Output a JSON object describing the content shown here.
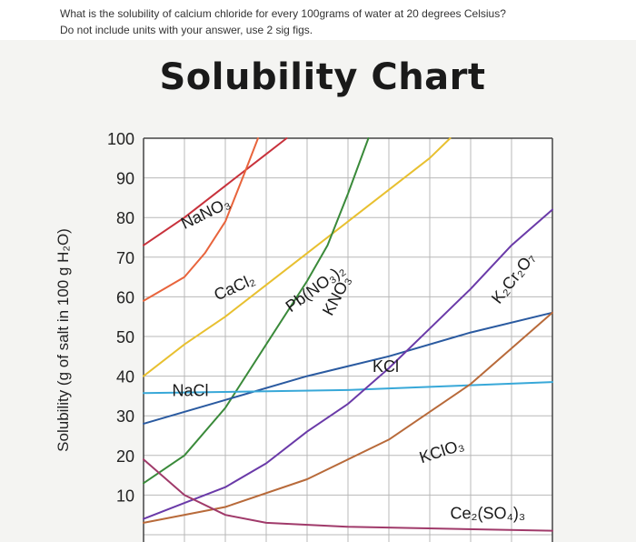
{
  "question": {
    "line1": "What is the solubility of calcium chloride for every 100grams of water at 20 degrees Celsius?",
    "line2": "Do not include units with your answer, use 2 sig figs."
  },
  "chart_data": {
    "type": "line",
    "title": "Solubility Chart",
    "xlabel": "",
    "ylabel": "Solubility (g of salt in 100 g H₂O)",
    "ylim": [
      0,
      100
    ],
    "xlim": [
      0,
      100
    ],
    "grid": true,
    "legend": "none",
    "yticks": [
      "100",
      "90",
      "80",
      "70",
      "60",
      "50",
      "40",
      "30",
      "20",
      "10"
    ],
    "series": [
      {
        "name": "NaNO₃",
        "color": "#c8323c",
        "label_at": [
          10,
          77
        ],
        "points": [
          [
            0,
            73
          ],
          [
            10,
            80
          ],
          [
            20,
            88
          ],
          [
            30,
            96
          ],
          [
            35,
            100
          ]
        ]
      },
      {
        "name": "CaCl₂",
        "color": "#e8643c",
        "label_at": [
          18,
          59
        ],
        "points": [
          [
            0,
            59
          ],
          [
            5,
            62
          ],
          [
            10,
            65
          ],
          [
            15,
            71
          ],
          [
            20,
            79
          ],
          [
            25,
            92
          ],
          [
            28,
            100
          ]
        ]
      },
      {
        "name": "Pb(NO₃)₂",
        "color": "#e8c030",
        "label_at": [
          36,
          56
        ],
        "points": [
          [
            0,
            40
          ],
          [
            10,
            48
          ],
          [
            20,
            55
          ],
          [
            30,
            63
          ],
          [
            40,
            71
          ],
          [
            50,
            79
          ],
          [
            60,
            87
          ],
          [
            70,
            95
          ],
          [
            75,
            100
          ]
        ]
      },
      {
        "name": "KNO₃",
        "color": "#3a8a3a",
        "label_at": [
          46,
          55
        ],
        "points": [
          [
            0,
            13
          ],
          [
            10,
            20
          ],
          [
            20,
            32
          ],
          [
            30,
            48
          ],
          [
            40,
            64
          ],
          [
            45,
            73
          ],
          [
            50,
            86
          ],
          [
            55,
            100
          ]
        ]
      },
      {
        "name": "KCl",
        "color": "#2a5aa0",
        "label_at": [
          56,
          41
        ],
        "points": [
          [
            0,
            28
          ],
          [
            20,
            34
          ],
          [
            40,
            40
          ],
          [
            60,
            45
          ],
          [
            80,
            51
          ],
          [
            100,
            56
          ]
        ]
      },
      {
        "name": "NaCl",
        "color": "#38a8d8",
        "label_at": [
          7,
          35
        ],
        "points": [
          [
            0,
            35.7
          ],
          [
            50,
            36.5
          ],
          [
            100,
            38.5
          ]
        ]
      },
      {
        "name": "K₂Cr₂O₇",
        "color": "#6a3aa8",
        "label_at": [
          87,
          58
        ],
        "points": [
          [
            0,
            4
          ],
          [
            10,
            8
          ],
          [
            20,
            12
          ],
          [
            30,
            18
          ],
          [
            40,
            26
          ],
          [
            50,
            33
          ],
          [
            60,
            42
          ],
          [
            70,
            52
          ],
          [
            80,
            62
          ],
          [
            90,
            73
          ],
          [
            100,
            82
          ]
        ]
      },
      {
        "name": "KClO₃",
        "color": "#b86a3a",
        "label_at": [
          68,
          18
        ],
        "points": [
          [
            0,
            3
          ],
          [
            20,
            7
          ],
          [
            40,
            14
          ],
          [
            60,
            24
          ],
          [
            80,
            38
          ],
          [
            100,
            56
          ]
        ]
      },
      {
        "name": "Ce₂(SO₄)₃",
        "color": "#a03a6a",
        "label_at": [
          75,
          4
        ],
        "points": [
          [
            0,
            19
          ],
          [
            10,
            10
          ],
          [
            20,
            5
          ],
          [
            30,
            3
          ],
          [
            50,
            2
          ],
          [
            100,
            1
          ]
        ]
      }
    ]
  }
}
